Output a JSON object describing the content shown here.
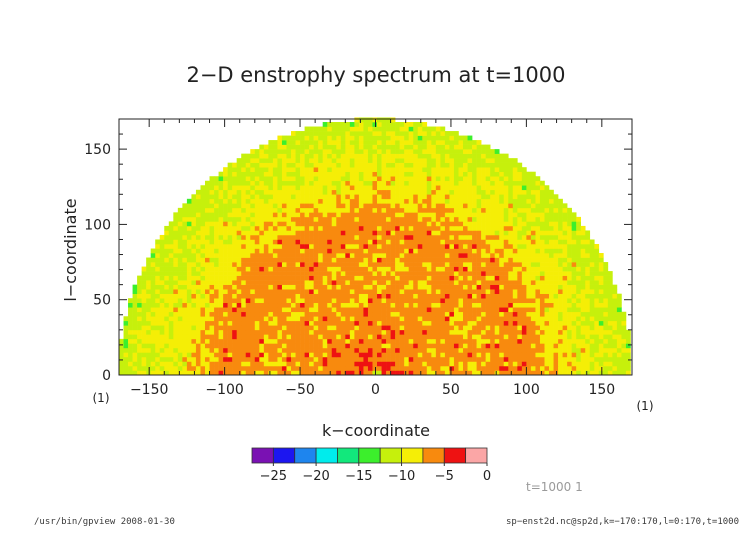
{
  "chart_data": {
    "type": "heatmap",
    "title": "2−D enstrophy spectrum at t=1000",
    "xlabel": "k−coordinate",
    "ylabel": "l−coordinate",
    "xlim": [
      -170,
      170
    ],
    "ylim": [
      0,
      170
    ],
    "x_ticks": [
      -150,
      -100,
      -50,
      0,
      50,
      100,
      150
    ],
    "x_tick_labels": [
      "−150",
      "−100",
      "−50",
      "0",
      "50",
      "100",
      "150"
    ],
    "y_ticks": [
      0,
      50,
      100,
      150
    ],
    "y_tick_labels": [
      "0",
      "50",
      "100",
      "150"
    ],
    "x_unit": "(1)",
    "y_unit": "(1)",
    "domain": "half-disk k^2 + l^2 <= 170^2, l >= 0",
    "approx_value_by_radius": [
      {
        "radius": 0,
        "value": -14
      },
      {
        "radius": 6,
        "value": -4
      },
      {
        "radius": 20,
        "value": -6
      },
      {
        "radius": 70,
        "value": -7
      },
      {
        "radius": 100,
        "value": -6
      },
      {
        "radius": 130,
        "value": -9
      },
      {
        "radius": 170,
        "value": -11
      }
    ],
    "colorbar": {
      "levels": [
        -27.5,
        -25,
        -22.5,
        -20,
        -17.5,
        -15,
        -12.5,
        -10,
        -7.5,
        -5,
        -2.5,
        0
      ],
      "tick_values": [
        -25,
        -20,
        -15,
        -10,
        -5,
        0
      ],
      "tick_labels": [
        "−25",
        "−20",
        "−15",
        "−10",
        "−5",
        "0"
      ],
      "colors": [
        "#7a11b3",
        "#1c16f0",
        "#1e85ee",
        "#00ecec",
        "#12e87c",
        "#3cef2c",
        "#c6f00c",
        "#f5ee06",
        "#f88a0e",
        "#ee1212",
        "#fba6a6"
      ]
    },
    "grid": false
  },
  "annotation": "t=1000 1",
  "footer": {
    "left": "/usr/bin/gpview  2008-01-30",
    "right": "sp−enst2d.nc@sp2d,k=−170:170,l=0:170,t=1000"
  }
}
